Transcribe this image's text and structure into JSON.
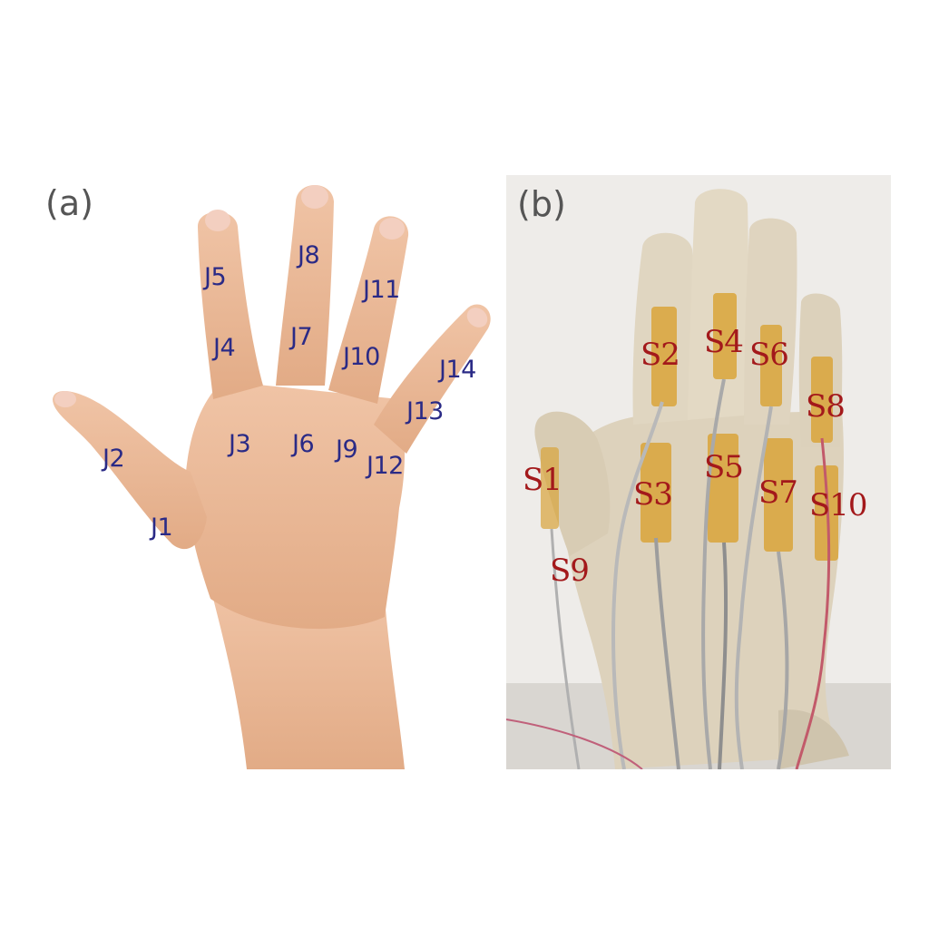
{
  "panel_a": {
    "label": "(a)",
    "joints": [
      "J1",
      "J2",
      "J3",
      "J4",
      "J5",
      "J6",
      "J7",
      "J8",
      "J9",
      "J10",
      "J11",
      "J12",
      "J13",
      "J14"
    ]
  },
  "panel_b": {
    "label": "(b)",
    "sensors": [
      "S1",
      "S2",
      "S3",
      "S4",
      "S5",
      "S6",
      "S7",
      "S8",
      "S9",
      "S10"
    ]
  },
  "colors": {
    "skin": "#e9b894",
    "glove": "#ddd2bc",
    "joint_label": "#2a2a86",
    "sensor_label": "#a3191b",
    "sensor_strip": "#d9a43a"
  }
}
